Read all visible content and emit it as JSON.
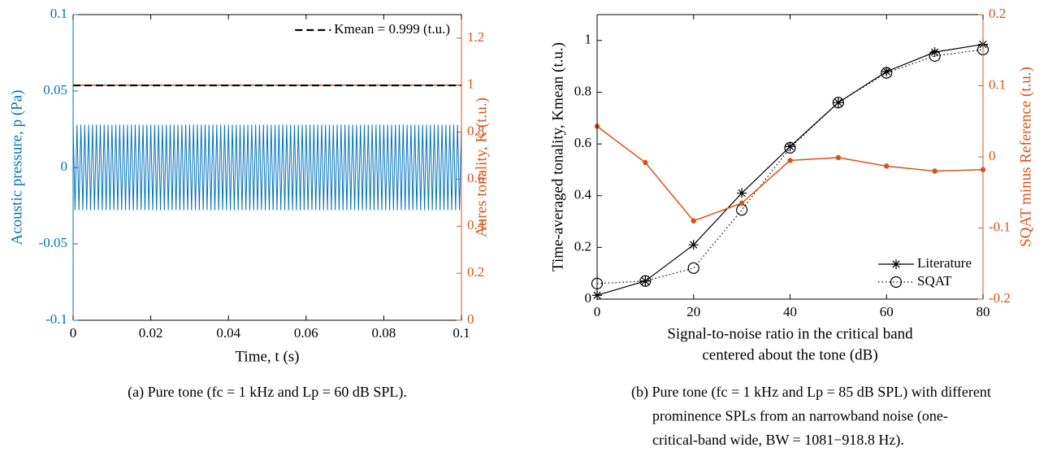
{
  "chart_data": [
    {
      "type": "line",
      "xlabel": [
        "Time, t (s)"
      ],
      "ylabel": "Acoustic pressure, p (Pa)",
      "y2label": "Aures tonality, K (t.u.)",
      "ycolor": "#0072BD",
      "y2color": "#D95319",
      "xlim": [
        0,
        0.1
      ],
      "xticks": [
        0,
        0.02,
        0.04,
        0.06,
        0.08,
        0.1
      ],
      "ylim": [
        -0.1,
        0.1
      ],
      "yticks": [
        -0.1,
        -0.05,
        0,
        0.05,
        0.1
      ],
      "y2lim": [
        0,
        1.3
      ],
      "y2ticks": [
        0,
        0.2,
        0.4,
        0.6,
        0.8,
        1,
        1.2
      ],
      "legend": "northeast",
      "caption": [
        "(a) Pure tone (fc = 1 kHz and Lp = 60 dB SPL)."
      ],
      "series": [
        {
          "color": "#0072BD",
          "line": "solid",
          "width": 1,
          "x": [
            0,
            0.0005,
            0.001,
            0.0015,
            0.002,
            0.0025,
            0.003,
            0.0035,
            0.004,
            0.0045,
            0.005,
            0.0055,
            0.006,
            0.0065,
            0.007,
            0.0075,
            0.008,
            0.0085,
            0.009,
            0.0095,
            0.01,
            0.0105,
            0.011,
            0.0115,
            0.012,
            0.0125,
            0.013,
            0.0135,
            0.014,
            0.0145,
            0.015,
            0.0155,
            0.016,
            0.0165,
            0.017,
            0.0175,
            0.018,
            0.0185,
            0.019,
            0.0195,
            0.02,
            0.0205,
            0.021,
            0.0215,
            0.022,
            0.0225,
            0.023,
            0.0235,
            0.024,
            0.0245,
            0.025,
            0.0255,
            0.026,
            0.0265,
            0.027,
            0.0275,
            0.028,
            0.0285,
            0.029,
            0.0295,
            0.03,
            0.0305,
            0.031,
            0.0315,
            0.032,
            0.0325,
            0.033,
            0.0335,
            0.034,
            0.0345,
            0.035,
            0.0355,
            0.036,
            0.0365,
            0.037,
            0.0375,
            0.038,
            0.0385,
            0.039,
            0.0395,
            0.04,
            0.0405,
            0.041,
            0.0415,
            0.042,
            0.0425,
            0.043,
            0.0435,
            0.044,
            0.0445,
            0.045,
            0.0455,
            0.046,
            0.0465,
            0.047,
            0.0475,
            0.048,
            0.0485,
            0.049,
            0.0495,
            0.05,
            0.0505,
            0.051,
            0.0515,
            0.052,
            0.0525,
            0.053,
            0.0535,
            0.054,
            0.0545,
            0.055,
            0.0555,
            0.056,
            0.0565,
            0.057,
            0.0575,
            0.058,
            0.0585,
            0.059,
            0.0595,
            0.06,
            0.0605,
            0.061,
            0.0615,
            0.062,
            0.0625,
            0.063,
            0.0635,
            0.064,
            0.0645,
            0.065,
            0.0655,
            0.066,
            0.0665,
            0.067,
            0.0675,
            0.068,
            0.0685,
            0.069,
            0.0695,
            0.07,
            0.0705,
            0.071,
            0.0715,
            0.072,
            0.0725,
            0.073,
            0.0735,
            0.074,
            0.0745,
            0.075,
            0.0755,
            0.076,
            0.0765,
            0.077,
            0.0775,
            0.078,
            0.0785,
            0.079,
            0.0795,
            0.08,
            0.0805,
            0.081,
            0.0815,
            0.082,
            0.0825,
            0.083,
            0.0835,
            0.084,
            0.0845,
            0.085,
            0.0855,
            0.086,
            0.0865,
            0.087,
            0.0875,
            0.088,
            0.0885,
            0.089,
            0.0895,
            0.09,
            0.0905,
            0.091,
            0.0915,
            0.092,
            0.0925,
            0.093,
            0.0935,
            0.094,
            0.0945,
            0.095,
            0.0955,
            0.096,
            0.0965,
            0.097,
            0.0975,
            0.098,
            0.0985,
            0.099,
            0.0995,
            0.1
          ],
          "values": [
            0.028,
            -0.028,
            0.028,
            -0.028,
            0.028,
            -0.028,
            0.028,
            -0.028,
            0.028,
            -0.028,
            0.028,
            -0.028,
            0.028,
            -0.028,
            0.028,
            -0.028,
            0.028,
            -0.028,
            0.028,
            -0.028,
            0.028,
            -0.028,
            0.028,
            -0.028,
            0.028,
            -0.028,
            0.028,
            -0.028,
            0.028,
            -0.028,
            0.028,
            -0.028,
            0.028,
            -0.028,
            0.028,
            -0.028,
            0.028,
            -0.028,
            0.028,
            -0.028,
            0.028,
            -0.028,
            0.028,
            -0.028,
            0.028,
            -0.028,
            0.028,
            -0.028,
            0.028,
            -0.028,
            0.028,
            -0.028,
            0.028,
            -0.028,
            0.028,
            -0.028,
            0.028,
            -0.028,
            0.028,
            -0.028,
            0.028,
            -0.028,
            0.028,
            -0.028,
            0.028,
            -0.028,
            0.028,
            -0.028,
            0.028,
            -0.028,
            0.028,
            -0.028,
            0.028,
            -0.028,
            0.028,
            -0.028,
            0.028,
            -0.028,
            0.028,
            -0.028,
            0.028,
            -0.028,
            0.028,
            -0.028,
            0.028,
            -0.028,
            0.028,
            -0.028,
            0.028,
            -0.028,
            0.028,
            -0.028,
            0.028,
            -0.028,
            0.028,
            -0.028,
            0.028,
            -0.028,
            0.028,
            -0.028,
            0.028,
            -0.028,
            0.028,
            -0.028,
            0.028,
            -0.028,
            0.028,
            -0.028,
            0.028,
            -0.028,
            0.028,
            -0.028,
            0.028,
            -0.028,
            0.028,
            -0.028,
            0.028,
            -0.028,
            0.028,
            -0.028,
            0.028,
            -0.028,
            0.028,
            -0.028,
            0.028,
            -0.028,
            0.028,
            -0.028,
            0.028,
            -0.028,
            0.028,
            -0.028,
            0.028,
            -0.028,
            0.028,
            -0.028,
            0.028,
            -0.028,
            0.028,
            -0.028,
            0.028,
            -0.028,
            0.028,
            -0.028,
            0.028,
            -0.028,
            0.028,
            -0.028,
            0.028,
            -0.028,
            0.028,
            -0.028,
            0.028,
            -0.028,
            0.028,
            -0.028,
            0.028,
            -0.028,
            0.028,
            -0.028,
            0.028,
            -0.028,
            0.028,
            -0.028,
            0.028,
            -0.028,
            0.028,
            -0.028,
            0.028,
            -0.028,
            0.028,
            -0.028,
            0.028,
            -0.028,
            0.028,
            -0.028,
            0.028,
            -0.028,
            0.028,
            -0.028,
            0.028,
            -0.028,
            0.028,
            -0.028,
            0.028,
            -0.028,
            0.028,
            -0.028,
            0.028,
            -0.028,
            0.028,
            -0.028,
            0.028,
            -0.028,
            0.028,
            -0.028,
            0.028,
            -0.028,
            0.028,
            -0.028,
            0.028
          ]
        },
        {
          "color": "#D95319",
          "line": "solid",
          "width": 1.5,
          "axis": "y2",
          "x": [
            0,
            0.1
          ],
          "values": [
            1,
            1
          ]
        },
        {
          "name": "Kmean = 0.999 (t.u.)",
          "color": "#000000",
          "line": "dashed",
          "width": 2.2,
          "axis": "y2",
          "x": [
            0,
            0.1
          ],
          "values": [
            0.999,
            0.999
          ]
        }
      ]
    },
    {
      "type": "line",
      "xlabel": [
        "Signal-to-noise ratio in the critical band",
        "centered about the tone (dB)"
      ],
      "ylabel": "Time-averaged tonality, Kmean (t.u.)",
      "y2label": "SQAT minus Reference (t.u.)",
      "ycolor": "#000000",
      "y2color": "#D95319",
      "xlim": [
        0,
        80
      ],
      "xticks": [
        0,
        20,
        40,
        60,
        80
      ],
      "ylim": [
        0,
        1.1
      ],
      "yticks": [
        0,
        0.2,
        0.4,
        0.6,
        0.8,
        1
      ],
      "y2lim": [
        -0.2,
        0.2
      ],
      "y2ticks": [
        -0.2,
        -0.1,
        0,
        0.1,
        0.2
      ],
      "legend": "southeast",
      "caption": [
        "(b) Pure tone (fc = 1 kHz and Lp = 85 dB SPL) with different",
        "prominence SPLs from an narrowband noise (one-",
        "critical-band wide, BW = 1081−918.8 Hz)."
      ],
      "series": [
        {
          "name": "Literature",
          "color": "#000000",
          "line": "solid",
          "width": 1.2,
          "marker": "star",
          "x": [
            0,
            10,
            20,
            30,
            40,
            50,
            60,
            70,
            80
          ],
          "values": [
            0.015,
            0.07,
            0.21,
            0.41,
            0.59,
            0.76,
            0.88,
            0.955,
            0.985
          ]
        },
        {
          "name": "SQAT",
          "color": "#000000",
          "line": "dotted",
          "width": 1.2,
          "marker": "circle",
          "x": [
            0,
            10,
            20,
            30,
            40,
            50,
            60,
            70,
            80
          ],
          "values": [
            0.06,
            0.07,
            0.12,
            0.345,
            0.585,
            0.76,
            0.875,
            0.94,
            0.965
          ]
        },
        {
          "color": "#D95319",
          "line": "solid",
          "width": 1.5,
          "marker": "dot",
          "axis": "y2",
          "x": [
            0,
            10,
            20,
            30,
            40,
            50,
            60,
            70,
            80
          ],
          "values": [
            0.043,
            -0.008,
            -0.09,
            -0.065,
            -0.005,
            -0.001,
            -0.013,
            -0.02,
            -0.018
          ]
        }
      ]
    }
  ]
}
